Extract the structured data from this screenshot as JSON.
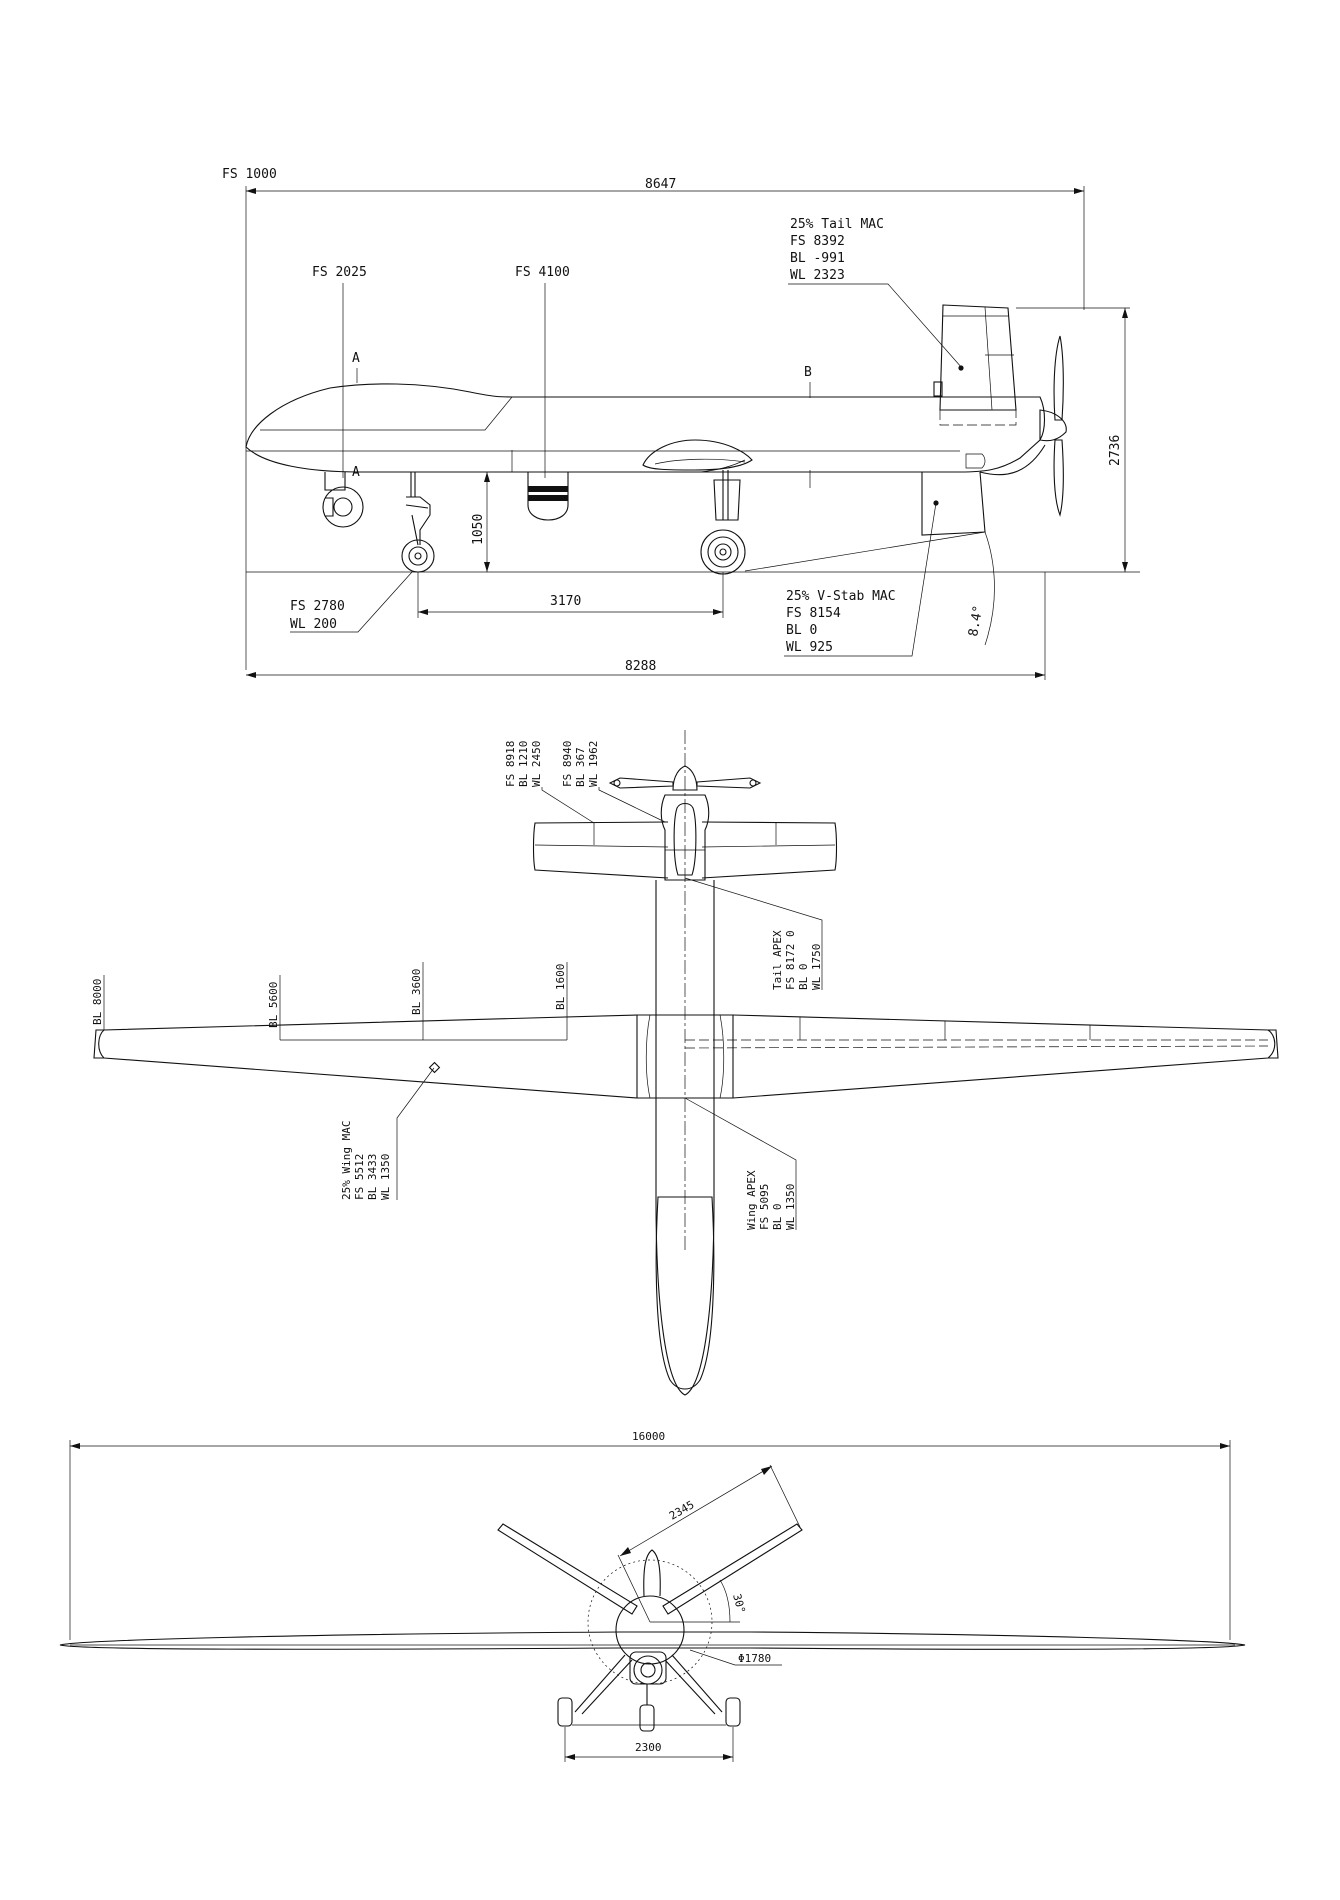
{
  "side_view": {
    "fs_origin": "FS 1000",
    "overall_length": "8647",
    "fs_2025": "FS 2025",
    "fs_4100": "FS 4100",
    "section_a": "A",
    "section_b": "B",
    "tail_mac": [
      "25% Tail MAC",
      "FS 8392",
      "BL -991",
      "WL 2323"
    ],
    "height_label": "2736",
    "gear_height": "1050",
    "wheelbase": "3170",
    "gear_point": [
      "FS 2780",
      "WL  200"
    ],
    "vstab_mac": [
      "25% V-Stab MAC",
      "FS 8154",
      "BL    0",
      "WL  925"
    ],
    "tail_angle": "8.4°",
    "ground_length": "8288"
  },
  "top_view": {
    "hstab_tip_1": [
      "FS 8918",
      "BL 1210",
      "WL 2450"
    ],
    "hstab_tip_2": [
      "FS 8940",
      "BL  367",
      "WL 1962"
    ],
    "tail_apex": [
      "Tail APEX",
      "FS 8172    0",
      "BL    0",
      "WL 1750"
    ],
    "bl_8000": "BL 8000",
    "bl_5600": "BL 5600",
    "bl_3600": "BL 3600",
    "bl_1600": "BL 1600",
    "wing_mac": [
      "25% Wing MAC",
      "FS 5512",
      "BL 3433",
      "WL 1350"
    ],
    "wing_apex": [
      "Wing APEX",
      "FS 5095",
      "BL    0",
      "WL 1350"
    ]
  },
  "front_view": {
    "span": "16000",
    "tail_span": "2345",
    "tail_angle": "30°",
    "prop_diameter": "Φ1780",
    "track": "2300"
  }
}
